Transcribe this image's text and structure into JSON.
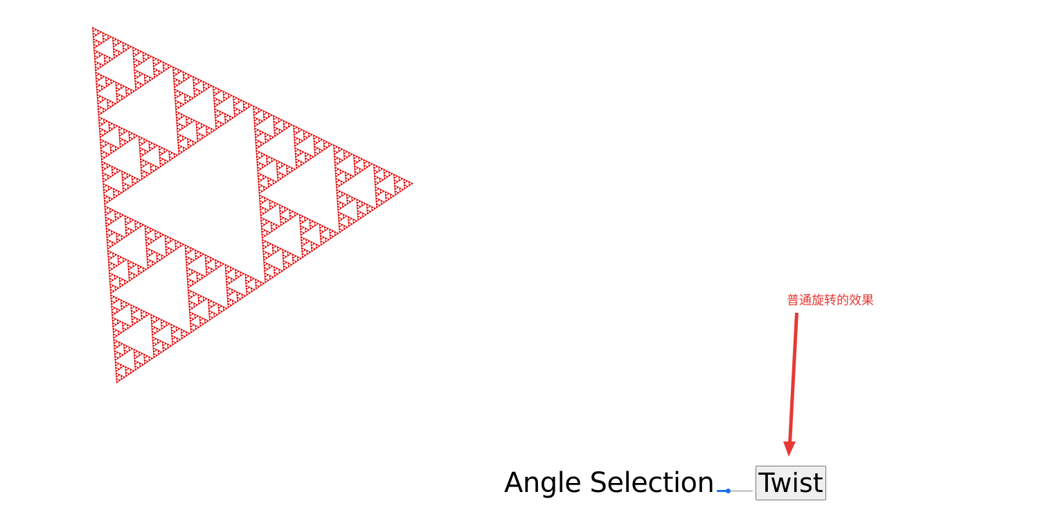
{
  "canvas": {
    "fill_color": "#e00000",
    "background_color": "#ffffff",
    "recursion_depth": 7
  },
  "controls": {
    "angle_label": "Angle Selection",
    "slider_value": 0.3,
    "twist_button_label": "Twist"
  },
  "annotation": {
    "text": "普通旋转的效果",
    "color": "#e53935"
  },
  "colors": {
    "slider_accent": "#1a73e8",
    "annotation": "#e53935"
  }
}
